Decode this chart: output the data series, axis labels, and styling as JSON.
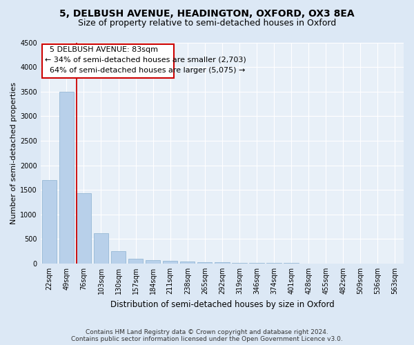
{
  "title1": "5, DELBUSH AVENUE, HEADINGTON, OXFORD, OX3 8EA",
  "title2": "Size of property relative to semi-detached houses in Oxford",
  "xlabel": "Distribution of semi-detached houses by size in Oxford",
  "ylabel": "Number of semi-detached properties",
  "bar_labels": [
    "22sqm",
    "49sqm",
    "76sqm",
    "103sqm",
    "130sqm",
    "157sqm",
    "184sqm",
    "211sqm",
    "238sqm",
    "265sqm",
    "292sqm",
    "319sqm",
    "346sqm",
    "374sqm",
    "401sqm",
    "428sqm",
    "455sqm",
    "482sqm",
    "509sqm",
    "536sqm",
    "563sqm"
  ],
  "bar_values": [
    1700,
    3500,
    1430,
    610,
    250,
    100,
    70,
    50,
    35,
    28,
    22,
    18,
    14,
    10,
    8,
    6,
    5,
    4,
    3,
    2,
    2
  ],
  "bar_color": "#b8d0ea",
  "bar_edge_color": "#8ab0d0",
  "property_line_x": 1.575,
  "annotation_address": "5 DELBUSH AVENUE: 83sqm",
  "pct_smaller": 34,
  "count_smaller": "2,703",
  "pct_larger": 64,
  "count_larger": "5,075",
  "ylim": [
    0,
    4500
  ],
  "yticks": [
    0,
    500,
    1000,
    1500,
    2000,
    2500,
    3000,
    3500,
    4000,
    4500
  ],
  "footnote1": "Contains HM Land Registry data © Crown copyright and database right 2024.",
  "footnote2": "Contains public sector information licensed under the Open Government Licence v3.0.",
  "bg_color": "#dce8f5",
  "plot_bg_color": "#e8f0f8",
  "grid_color": "#ffffff",
  "box_color": "#cc0000",
  "title1_fontsize": 10,
  "title2_fontsize": 9,
  "xlabel_fontsize": 8.5,
  "ylabel_fontsize": 8,
  "tick_fontsize": 7,
  "annotation_fontsize": 8,
  "footnote_fontsize": 6.5
}
